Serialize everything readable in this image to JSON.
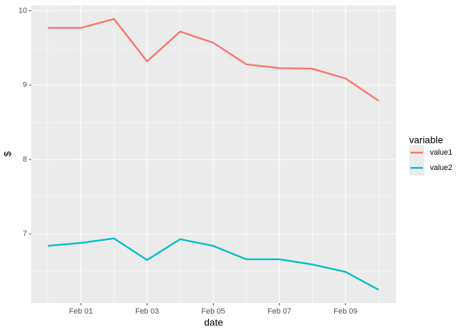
{
  "chart_data": {
    "type": "line",
    "x": [
      "Jan 31",
      "Feb 01",
      "Feb 02",
      "Feb 03",
      "Feb 04",
      "Feb 05",
      "Feb 06",
      "Feb 07",
      "Feb 08",
      "Feb 09",
      "Feb 10"
    ],
    "series": [
      {
        "name": "value1",
        "color": "#f8766d",
        "values": [
          9.77,
          9.77,
          9.89,
          9.32,
          9.72,
          9.57,
          9.28,
          9.23,
          9.22,
          9.09,
          8.79
        ]
      },
      {
        "name": "value2",
        "color": "#00bfc4",
        "values": [
          6.84,
          6.88,
          6.94,
          6.65,
          6.93,
          6.84,
          6.66,
          6.66,
          6.59,
          6.49,
          6.25
        ]
      }
    ],
    "xlabel": "date",
    "ylabel": "$",
    "legend_title": "variable",
    "ylim": [
      6.07,
      10.07
    ],
    "yticks": [
      7,
      8,
      9,
      10
    ],
    "y_minor_ticks": [
      6.5,
      7.5,
      8.5,
      9.5
    ],
    "xticks": [
      "Feb 01",
      "Feb 03",
      "Feb 05",
      "Feb 07",
      "Feb 09"
    ],
    "x_minor_ticks": [
      "Jan 31",
      "Feb 02",
      "Feb 04",
      "Feb 06",
      "Feb 08",
      "Feb 10"
    ],
    "grid": true,
    "legend": "right"
  }
}
